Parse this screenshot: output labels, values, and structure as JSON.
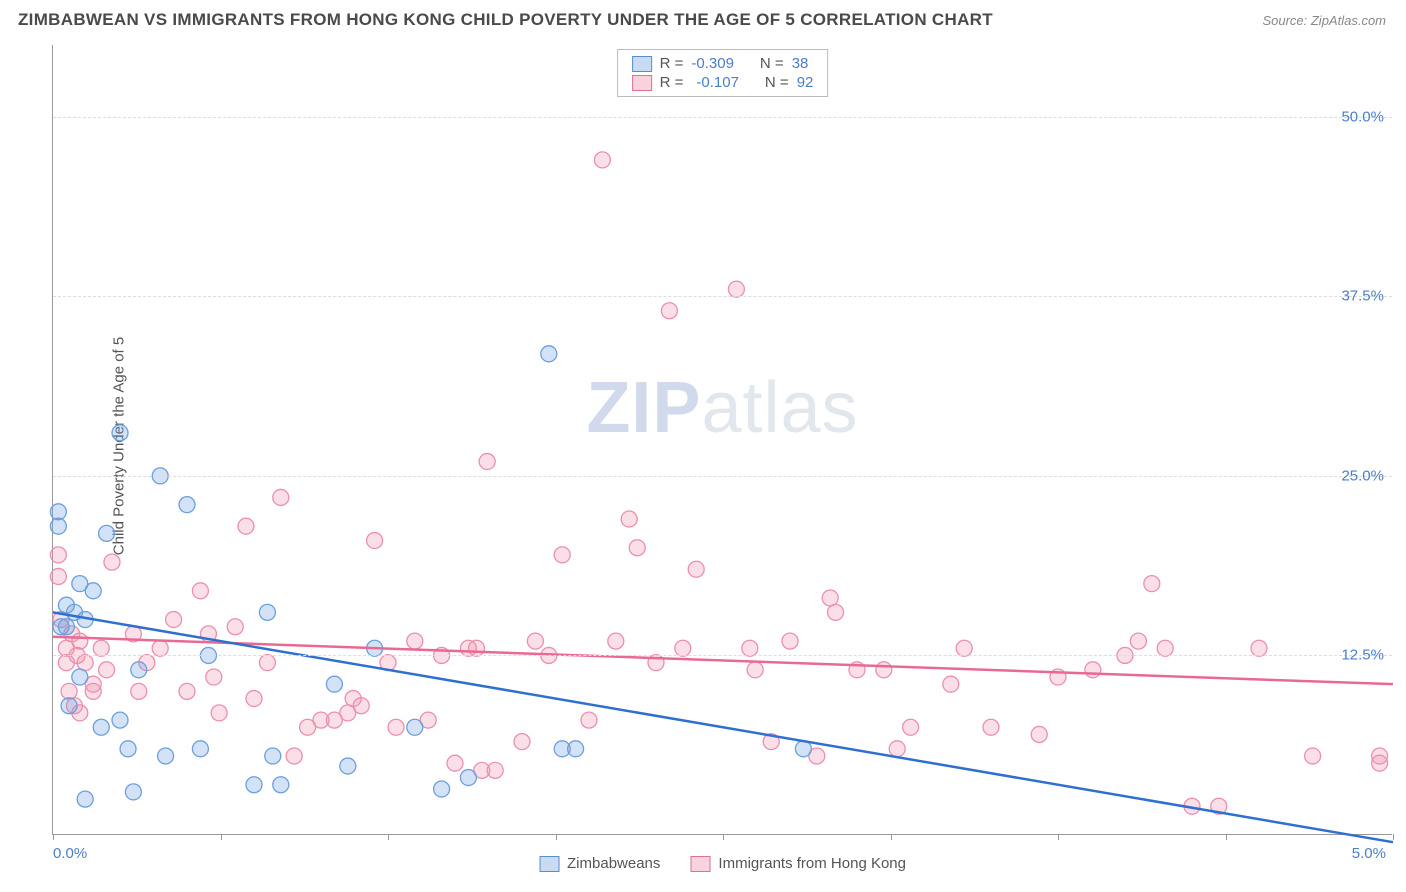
{
  "header": {
    "title": "ZIMBABWEAN VS IMMIGRANTS FROM HONG KONG CHILD POVERTY UNDER THE AGE OF 5 CORRELATION CHART",
    "source": "Source: ZipAtlas.com"
  },
  "chart": {
    "type": "scatter",
    "y_axis_label": "Child Poverty Under the Age of 5",
    "xlim": [
      0,
      5
    ],
    "ylim": [
      0,
      55
    ],
    "y_ticks": [
      12.5,
      25.0,
      37.5,
      50.0
    ],
    "y_tick_labels": [
      "12.5%",
      "25.0%",
      "37.5%",
      "50.0%"
    ],
    "x_tick_positions": [
      0,
      0.625,
      1.25,
      1.875,
      2.5,
      3.125,
      3.75,
      4.375,
      5
    ],
    "x_min_label": "0.0%",
    "x_max_label": "5.0%",
    "background_color": "#ffffff",
    "grid_color": "#dddddd",
    "axis_color": "#999999",
    "colors": {
      "blue_fill": "rgba(110,160,225,0.30)",
      "blue_stroke": "#6aa0dd",
      "pink_fill": "rgba(240,150,175,0.30)",
      "pink_stroke": "#ec8fae",
      "blue_line": "#2f6fd0",
      "pink_line": "#e86a93",
      "tick_label": "#4a7ec9"
    },
    "legend_top": [
      {
        "color": "blue",
        "r_label": "R =",
        "r_val": "-0.309",
        "n_label": "N =",
        "n_val": "38"
      },
      {
        "color": "pink",
        "r_label": "R =",
        "r_val": "-0.107",
        "n_label": "N =",
        "n_val": "92"
      }
    ],
    "legend_bottom": [
      {
        "color": "blue",
        "label": "Zimbabweans"
      },
      {
        "color": "pink",
        "label": "Immigrants from Hong Kong"
      }
    ],
    "watermark": {
      "bold": "ZIP",
      "light": "atlas"
    },
    "series_blue": {
      "marker_radius": 8,
      "points": [
        [
          0.02,
          22.5
        ],
        [
          0.02,
          21.5
        ],
        [
          0.03,
          14.5
        ],
        [
          0.05,
          16.0
        ],
        [
          0.05,
          14.5
        ],
        [
          0.06,
          9.0
        ],
        [
          0.08,
          15.5
        ],
        [
          0.1,
          17.5
        ],
        [
          0.12,
          15.0
        ],
        [
          0.12,
          2.5
        ],
        [
          0.15,
          17.0
        ],
        [
          0.18,
          7.5
        ],
        [
          0.2,
          21.0
        ],
        [
          0.25,
          28.0
        ],
        [
          0.25,
          8.0
        ],
        [
          0.28,
          6.0
        ],
        [
          0.3,
          3.0
        ],
        [
          0.32,
          11.5
        ],
        [
          0.4,
          25.0
        ],
        [
          0.42,
          5.5
        ],
        [
          0.5,
          23.0
        ],
        [
          0.55,
          6.0
        ],
        [
          0.58,
          12.5
        ],
        [
          0.75,
          3.5
        ],
        [
          0.8,
          15.5
        ],
        [
          0.82,
          5.5
        ],
        [
          0.85,
          3.5
        ],
        [
          1.05,
          10.5
        ],
        [
          1.1,
          4.8
        ],
        [
          1.2,
          13.0
        ],
        [
          1.35,
          7.5
        ],
        [
          1.45,
          3.2
        ],
        [
          1.55,
          4.0
        ],
        [
          1.85,
          33.5
        ],
        [
          1.9,
          6.0
        ],
        [
          1.95,
          6.0
        ],
        [
          2.8,
          6.0
        ],
        [
          0.1,
          11.0
        ]
      ],
      "regression": {
        "y_at_x0": 15.5,
        "y_at_xmax": -0.5
      }
    },
    "series_pink": {
      "marker_radius": 8,
      "points": [
        [
          0.02,
          19.5
        ],
        [
          0.02,
          18.0
        ],
        [
          0.03,
          15.0
        ],
        [
          0.05,
          13.0
        ],
        [
          0.05,
          12.0
        ],
        [
          0.06,
          10.0
        ],
        [
          0.07,
          14.0
        ],
        [
          0.08,
          9.0
        ],
        [
          0.09,
          12.5
        ],
        [
          0.1,
          13.5
        ],
        [
          0.1,
          8.5
        ],
        [
          0.12,
          12.0
        ],
        [
          0.15,
          10.5
        ],
        [
          0.15,
          10.0
        ],
        [
          0.18,
          13.0
        ],
        [
          0.2,
          11.5
        ],
        [
          0.22,
          19.0
        ],
        [
          0.3,
          14.0
        ],
        [
          0.32,
          10.0
        ],
        [
          0.35,
          12.0
        ],
        [
          0.4,
          13.0
        ],
        [
          0.45,
          15.0
        ],
        [
          0.5,
          10.0
        ],
        [
          0.55,
          17.0
        ],
        [
          0.58,
          14.0
        ],
        [
          0.6,
          11.0
        ],
        [
          0.62,
          8.5
        ],
        [
          0.68,
          14.5
        ],
        [
          0.72,
          21.5
        ],
        [
          0.75,
          9.5
        ],
        [
          0.8,
          12.0
        ],
        [
          0.85,
          23.5
        ],
        [
          0.9,
          5.5
        ],
        [
          0.95,
          7.5
        ],
        [
          1.0,
          8.0
        ],
        [
          1.05,
          8.0
        ],
        [
          1.1,
          8.5
        ],
        [
          1.12,
          9.5
        ],
        [
          1.15,
          9.0
        ],
        [
          1.2,
          20.5
        ],
        [
          1.25,
          12.0
        ],
        [
          1.28,
          7.5
        ],
        [
          1.35,
          13.5
        ],
        [
          1.4,
          8.0
        ],
        [
          1.45,
          12.5
        ],
        [
          1.5,
          5.0
        ],
        [
          1.55,
          13.0
        ],
        [
          1.58,
          13.0
        ],
        [
          1.6,
          4.5
        ],
        [
          1.62,
          26.0
        ],
        [
          1.65,
          4.5
        ],
        [
          1.75,
          6.5
        ],
        [
          1.8,
          13.5
        ],
        [
          1.85,
          12.5
        ],
        [
          1.9,
          19.5
        ],
        [
          2.0,
          8.0
        ],
        [
          2.05,
          47.0
        ],
        [
          2.1,
          13.5
        ],
        [
          2.15,
          22.0
        ],
        [
          2.18,
          20.0
        ],
        [
          2.25,
          12.0
        ],
        [
          2.3,
          36.5
        ],
        [
          2.35,
          13.0
        ],
        [
          2.4,
          18.5
        ],
        [
          2.55,
          38.0
        ],
        [
          2.6,
          13.0
        ],
        [
          2.62,
          11.5
        ],
        [
          2.68,
          6.5
        ],
        [
          2.75,
          13.5
        ],
        [
          2.85,
          5.5
        ],
        [
          2.9,
          16.5
        ],
        [
          2.92,
          15.5
        ],
        [
          3.0,
          11.5
        ],
        [
          3.1,
          11.5
        ],
        [
          3.15,
          6.0
        ],
        [
          3.2,
          7.5
        ],
        [
          3.35,
          10.5
        ],
        [
          3.4,
          13.0
        ],
        [
          3.5,
          7.5
        ],
        [
          3.68,
          7.0
        ],
        [
          3.75,
          11.0
        ],
        [
          3.88,
          11.5
        ],
        [
          4.0,
          12.5
        ],
        [
          4.1,
          17.5
        ],
        [
          4.05,
          13.5
        ],
        [
          4.15,
          13.0
        ],
        [
          4.25,
          2.0
        ],
        [
          4.35,
          2.0
        ],
        [
          4.5,
          13.0
        ],
        [
          4.7,
          5.5
        ],
        [
          4.95,
          5.0
        ],
        [
          4.95,
          5.5
        ]
      ],
      "regression": {
        "y_at_x0": 13.8,
        "y_at_xmax": 10.5
      }
    }
  }
}
